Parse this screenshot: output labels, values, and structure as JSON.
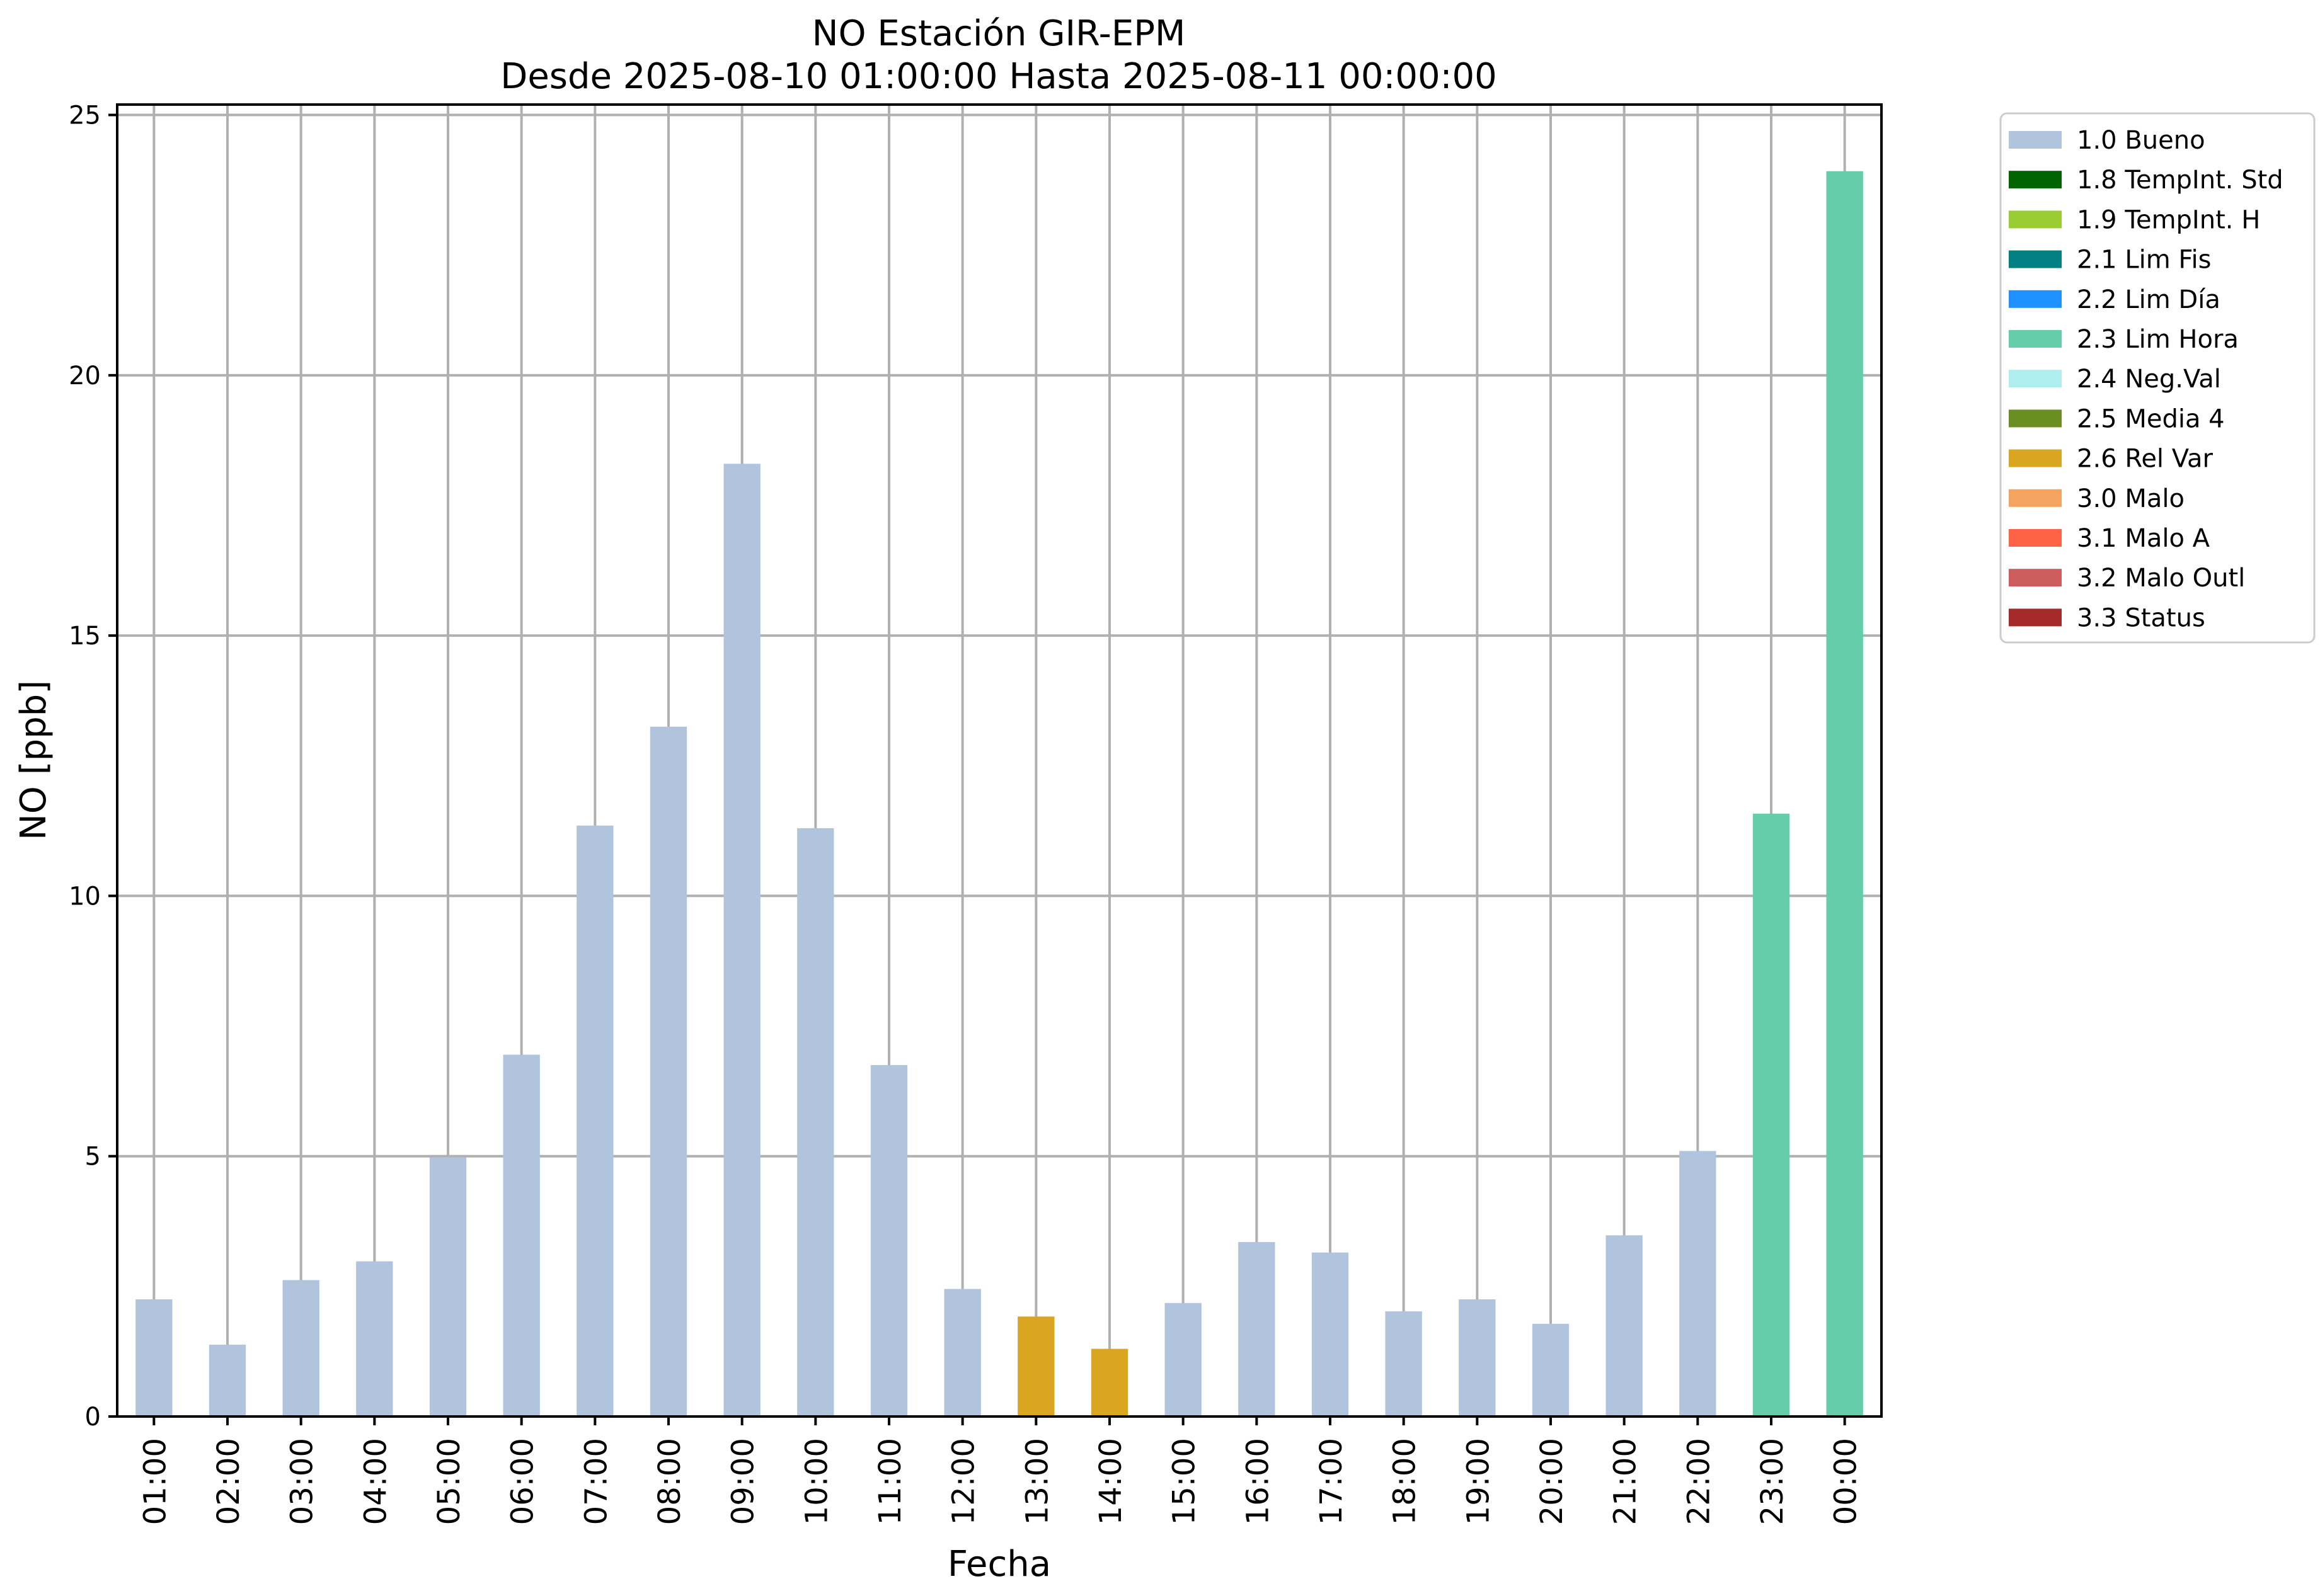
{
  "chart_data": {
    "type": "bar",
    "title": "NO Estación GIR-EPM",
    "subtitle": "Desde 2025-08-10 01:00:00 Hasta 2025-08-11 00:00:00",
    "xlabel": "Fecha",
    "ylabel": "NO [ppb]",
    "ylim": [
      0,
      25.2
    ],
    "yticks": [
      "0",
      "5",
      "10",
      "15",
      "20",
      "25"
    ],
    "grid": true,
    "legend_position": "outside-top-right",
    "categories": [
      "01:00",
      "02:00",
      "03:00",
      "04:00",
      "05:00",
      "06:00",
      "07:00",
      "08:00",
      "09:00",
      "10:00",
      "11:00",
      "12:00",
      "13:00",
      "14:00",
      "15:00",
      "16:00",
      "17:00",
      "18:00",
      "19:00",
      "20:00",
      "21:00",
      "22:00",
      "23:00",
      "00:00"
    ],
    "values": [
      2.25,
      1.38,
      2.62,
      2.98,
      4.98,
      6.95,
      11.35,
      13.25,
      18.3,
      11.3,
      6.75,
      2.45,
      1.92,
      1.3,
      2.18,
      3.35,
      3.15,
      2.02,
      2.25,
      1.78,
      3.48,
      5.1,
      11.58,
      23.92
    ],
    "flags": [
      "1.0 Bueno",
      "1.0 Bueno",
      "1.0 Bueno",
      "1.0 Bueno",
      "1.0 Bueno",
      "1.0 Bueno",
      "1.0 Bueno",
      "1.0 Bueno",
      "1.0 Bueno",
      "1.0 Bueno",
      "1.0 Bueno",
      "1.0 Bueno",
      "2.6 Rel Var",
      "2.6 Rel Var",
      "1.0 Bueno",
      "1.0 Bueno",
      "1.0 Bueno",
      "1.0 Bueno",
      "1.0 Bueno",
      "1.0 Bueno",
      "1.0 Bueno",
      "1.0 Bueno",
      "2.3 Lim Hora",
      "2.3 Lim Hora"
    ],
    "legend": [
      {
        "label": "1.0 Bueno",
        "color": "#b0c4de"
      },
      {
        "label": "1.8 TempInt. Std",
        "color": "#006400"
      },
      {
        "label": "1.9 TempInt. H",
        "color": "#9acd32"
      },
      {
        "label": "2.1 Lim Fis",
        "color": "#008080"
      },
      {
        "label": "2.2 Lim Día",
        "color": "#1e90ff"
      },
      {
        "label": "2.3 Lim Hora",
        "color": "#66cdaa"
      },
      {
        "label": "2.4 Neg.Val",
        "color": "#afeeee"
      },
      {
        "label": "2.5 Media 4",
        "color": "#6b8e23"
      },
      {
        "label": "2.6 Rel Var",
        "color": "#daa520"
      },
      {
        "label": "3.0 Malo",
        "color": "#f4a460"
      },
      {
        "label": "3.1 Malo A",
        "color": "#ff6347"
      },
      {
        "label": "3.2 Malo Outl",
        "color": "#cd5c5c"
      },
      {
        "label": "3.3 Status",
        "color": "#a52a2a"
      }
    ]
  }
}
